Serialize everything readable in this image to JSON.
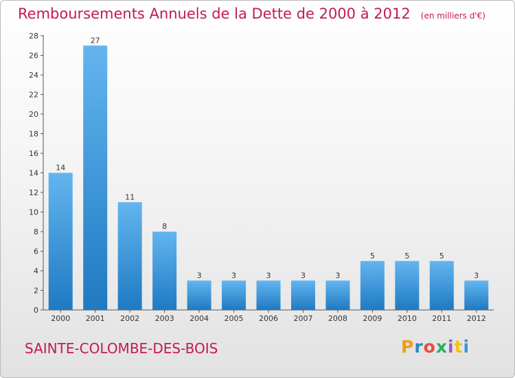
{
  "header": {
    "title": "Remboursements Annuels de la Dette de 2000 à 2012",
    "unit": "(en milliers d'€)"
  },
  "footer": {
    "commune": "SAINTE-COLOMBE-DES-BOIS",
    "logo_text": "Proxiti",
    "logo_colors": [
      "#f39c12",
      "#2e86c1",
      "#e74c3c",
      "#27ae60",
      "#9b59b6",
      "#f1c40f",
      "#3498db"
    ]
  },
  "colors": {
    "accent": "#c2185b",
    "bar_top": "#63b5ef",
    "bar_bottom": "#1f7ac2",
    "axis": "#555555",
    "text": "#333333"
  },
  "chart_data": {
    "type": "bar",
    "title": "Remboursements Annuels de la Dette de 2000 à 2012",
    "subtitle": "(en milliers d'€)",
    "categories": [
      "2000",
      "2001",
      "2002",
      "2003",
      "2004",
      "2005",
      "2006",
      "2007",
      "2008",
      "2009",
      "2010",
      "2011",
      "2012"
    ],
    "values": [
      14,
      27,
      11,
      8,
      3,
      3,
      3,
      3,
      3,
      5,
      5,
      5,
      3
    ],
    "data_labels": [
      "14",
      "27",
      "11",
      "8",
      "3",
      "3",
      "3",
      "3",
      "3",
      "5",
      "5",
      "5",
      "3"
    ],
    "xlabel": "",
    "ylabel": "",
    "ylim": [
      0,
      28
    ],
    "yticks": [
      0,
      2,
      4,
      6,
      8,
      10,
      12,
      14,
      16,
      18,
      20,
      22,
      24,
      26,
      28
    ],
    "grid": false,
    "legend": "none"
  }
}
